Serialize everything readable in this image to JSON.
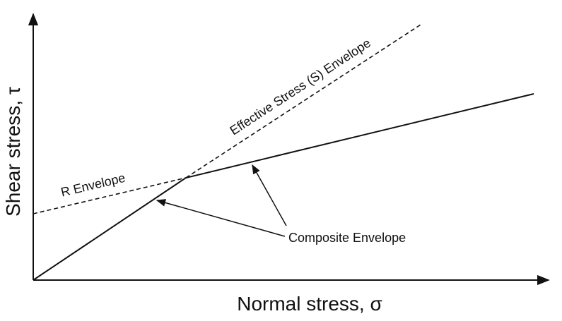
{
  "axes": {
    "x_label": "Normal stress, σ",
    "y_label": "Shear stress, τ"
  },
  "lines": {
    "r_envelope": "R Envelope",
    "s_envelope": "Effective Stress (S) Envelope",
    "composite": "Composite Envelope"
  }
}
